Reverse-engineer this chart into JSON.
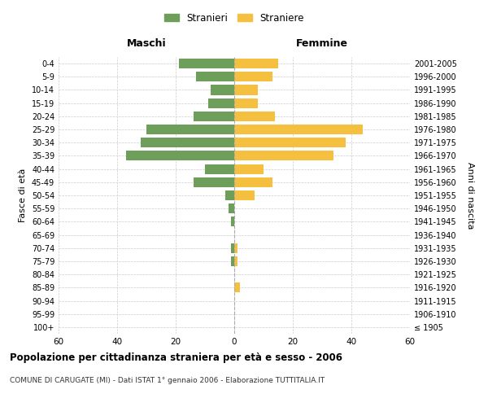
{
  "age_groups": [
    "100+",
    "95-99",
    "90-94",
    "85-89",
    "80-84",
    "75-79",
    "70-74",
    "65-69",
    "60-64",
    "55-59",
    "50-54",
    "45-49",
    "40-44",
    "35-39",
    "30-34",
    "25-29",
    "20-24",
    "15-19",
    "10-14",
    "5-9",
    "0-4"
  ],
  "birth_years": [
    "≤ 1905",
    "1906-1910",
    "1911-1915",
    "1916-1920",
    "1921-1925",
    "1926-1930",
    "1931-1935",
    "1936-1940",
    "1941-1945",
    "1946-1950",
    "1951-1955",
    "1956-1960",
    "1961-1965",
    "1966-1970",
    "1971-1975",
    "1976-1980",
    "1981-1985",
    "1986-1990",
    "1991-1995",
    "1996-2000",
    "2001-2005"
  ],
  "maschi": [
    0,
    0,
    0,
    0,
    0,
    1,
    1,
    0,
    1,
    2,
    3,
    14,
    10,
    37,
    32,
    30,
    14,
    9,
    8,
    13,
    19
  ],
  "femmine": [
    0,
    0,
    0,
    2,
    0,
    1,
    1,
    0,
    0,
    0,
    7,
    13,
    10,
    34,
    38,
    44,
    14,
    8,
    8,
    13,
    15
  ],
  "color_maschi": "#6d9e5a",
  "color_femmine": "#f5c040",
  "background_color": "#ffffff",
  "grid_color": "#cccccc",
  "title": "Popolazione per cittadinanza straniera per età e sesso - 2006",
  "subtitle": "COMUNE DI CARUGATE (MI) - Dati ISTAT 1° gennaio 2006 - Elaborazione TUTTITALIA.IT",
  "xlabel_left": "Maschi",
  "xlabel_right": "Femmine",
  "ylabel_left": "Fasce di età",
  "ylabel_right": "Anni di nascita",
  "legend_maschi": "Stranieri",
  "legend_femmine": "Straniere",
  "xlim": 60
}
